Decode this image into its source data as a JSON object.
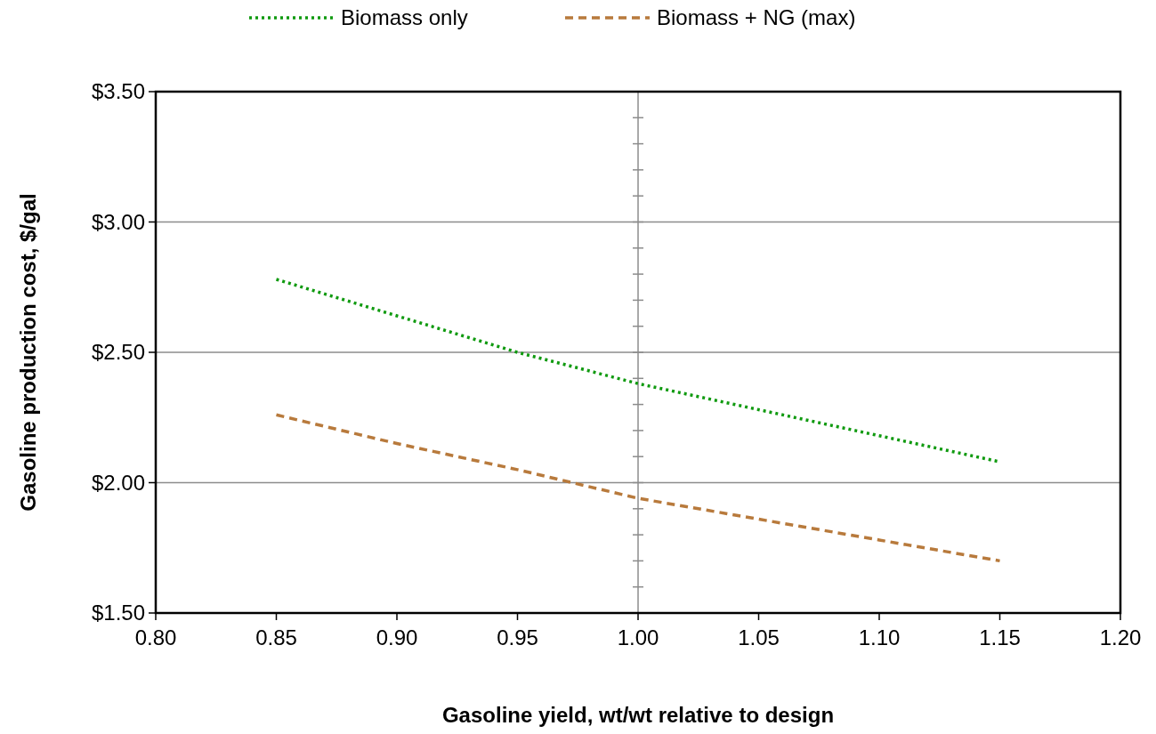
{
  "chart_data": {
    "type": "line",
    "xlabel": "Gasoline yield, wt/wt relative to design",
    "ylabel": "Gasoline production cost, $/gal",
    "x": [
      0.85,
      0.9,
      0.95,
      1.0,
      1.05,
      1.1,
      1.15
    ],
    "series": [
      {
        "name": "Biomass only",
        "color": "#109a10",
        "values": [
          2.78,
          2.64,
          2.5,
          2.38,
          2.28,
          2.18,
          2.08
        ],
        "line_style": "dotted"
      },
      {
        "name": "Biomass + NG (max)",
        "color": "#b87a3c",
        "values": [
          2.26,
          2.15,
          2.05,
          1.94,
          1.86,
          1.78,
          1.7
        ],
        "line_style": "dashed"
      }
    ],
    "xlim": [
      0.8,
      1.2
    ],
    "xticks": [
      {
        "value": 0.8,
        "label": "0.80"
      },
      {
        "value": 0.85,
        "label": "0.85"
      },
      {
        "value": 0.9,
        "label": "0.90"
      },
      {
        "value": 0.95,
        "label": "0.95"
      },
      {
        "value": 1.0,
        "label": "1.00"
      },
      {
        "value": 1.05,
        "label": "1.05"
      },
      {
        "value": 1.1,
        "label": "1.10"
      },
      {
        "value": 1.15,
        "label": "1.15"
      },
      {
        "value": 1.2,
        "label": "1.20"
      }
    ],
    "ylim": [
      1.5,
      3.5
    ],
    "yticks": [
      {
        "value": 1.5,
        "label": "$1.50"
      },
      {
        "value": 2.0,
        "label": "$2.00"
      },
      {
        "value": 2.5,
        "label": "$2.50"
      },
      {
        "value": 3.0,
        "label": "$3.00"
      },
      {
        "value": 3.5,
        "label": "$3.50"
      }
    ],
    "grid": "y",
    "ref_lines": [
      {
        "axis": "x",
        "value": 1.0,
        "color": "#8c8c8c"
      }
    ],
    "legend": "top",
    "marker": "none"
  }
}
